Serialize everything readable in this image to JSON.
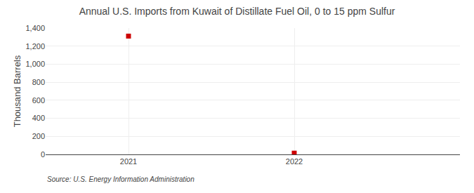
{
  "chart_data": {
    "type": "scatter",
    "title": "Annual U.S. Imports from Kuwait of Distillate Fuel Oil, 0 to 15 ppm Sulfur",
    "ylabel": "Thousand Barrels",
    "source": "Source: U.S. Energy Information Administration",
    "x": [
      2021,
      2022
    ],
    "values": [
      1311,
      14
    ],
    "color": "#cc0000",
    "marker": "square",
    "xlim": [
      2020.5,
      2023.0
    ],
    "xticks": [
      2021,
      2022
    ],
    "ylim": [
      0,
      1400
    ],
    "yticks": [
      0,
      200,
      400,
      600,
      800,
      {
        "value": 1000,
        "label": "1,000"
      },
      {
        "value": 1200,
        "label": "1,200"
      },
      {
        "value": 1400,
        "label": "1,400"
      }
    ],
    "grid": true
  }
}
